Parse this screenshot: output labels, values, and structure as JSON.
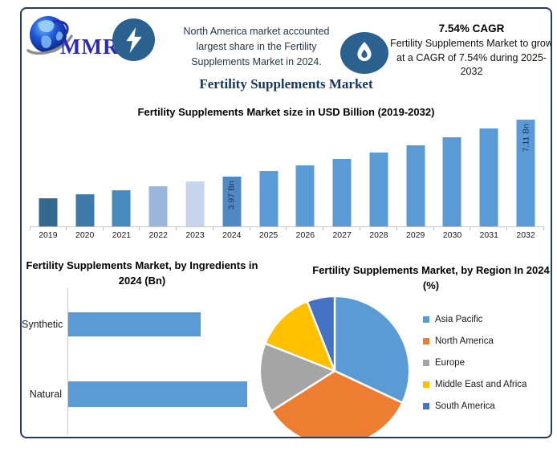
{
  "title": "Fertility Supplements Market",
  "header": {
    "logo_text": "MMR",
    "headline": "North America market accounted largest share in the Fertility Supplements Market in 2024.",
    "cagr_title": "7.54% CAGR",
    "cagr_body": "Fertility Supplements Market to grow at a CAGR of 7.54% during 2025-2032"
  },
  "colors": {
    "frame_border": "#2b3a64",
    "badge_circle": "#2b618f",
    "bar_default": "#5b9bd5",
    "axis_gray": "#c9c9c9",
    "title_navy": "#17375e"
  },
  "chart_data": [
    {
      "type": "bar",
      "title": "Fertility Supplements Market size in USD Billion (2019-2032)",
      "categories": [
        "2019",
        "2020",
        "2021",
        "2022",
        "2023",
        "2024",
        "2025",
        "2026",
        "2027",
        "2028",
        "2029",
        "2030",
        "2031",
        "2032"
      ],
      "values": [
        2.76,
        2.97,
        3.19,
        3.43,
        3.69,
        3.97,
        4.27,
        4.59,
        4.94,
        5.31,
        5.71,
        6.14,
        6.61,
        7.11
      ],
      "unit": "USD Bn",
      "ylabel": "",
      "xlabel": "",
      "ylim": [
        1.2,
        7.11
      ],
      "grid": false,
      "data_labels": {
        "2024": "3.97 Bn",
        "2032": "7.11 Bn"
      },
      "bar_colors": [
        "#35688f",
        "#3d7aa9",
        "#478abc",
        "#9bb8dc",
        "#c6d4ec",
        "#5089c3",
        "#5b9bd5",
        "#5b9bd5",
        "#5b9bd5",
        "#5b9bd5",
        "#5b9bd5",
        "#5b9bd5",
        "#5b9bd5",
        "#5b9bd5"
      ]
    },
    {
      "type": "bar",
      "orientation": "horizontal",
      "title": "Fertility Supplements Market, by Ingredients in 2024 (Bn)",
      "categories": [
        "Synthetic",
        "Natural"
      ],
      "values": [
        1.69,
        2.28
      ],
      "unit": "USD Bn",
      "bar_color": "#5b9bd5",
      "grid": false
    },
    {
      "type": "pie",
      "title": "Fertility Supplements Market, by Region In 2024 (%)",
      "labels": [
        "Asia Pacific",
        "North America",
        "Europe",
        "Middle East and Africa",
        "South America"
      ],
      "values": [
        32,
        34,
        15,
        13,
        6
      ],
      "unit": "%",
      "colors": [
        "#5b9bd5",
        "#ed7d31",
        "#a5a5a5",
        "#ffc000",
        "#4472c4"
      ],
      "legend_position": "right",
      "start_angle_deg": 0,
      "direction": "clockwise"
    }
  ]
}
